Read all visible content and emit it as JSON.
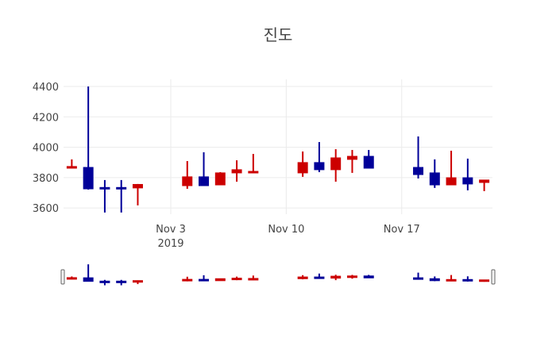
{
  "chart_data": {
    "type": "candlestick",
    "title": "진도",
    "xlabel": "",
    "ylabel": "",
    "ylim": [
      3559,
      4447
    ],
    "y_ticks": [
      3600,
      3800,
      4000,
      4200,
      4400
    ],
    "x_ticks": [
      {
        "date": "2019-11-03",
        "label": "Nov 3",
        "sublabel": "2019"
      },
      {
        "date": "2019-11-10",
        "label": "Nov 10",
        "sublabel": ""
      },
      {
        "date": "2019-11-17",
        "label": "Nov 17",
        "sublabel": ""
      }
    ],
    "xlim": [
      "2019-10-27T12:00",
      "2019-11-22T12:00"
    ],
    "grid": true,
    "range_slider": true,
    "increasing_color": "#cc0000",
    "decreasing_color": "#000099",
    "dates": [
      "2019-10-28",
      "2019-10-29",
      "2019-10-30",
      "2019-10-31",
      "2019-11-01",
      "2019-11-04",
      "2019-11-05",
      "2019-11-06",
      "2019-11-07",
      "2019-11-08",
      "2019-11-11",
      "2019-11-12",
      "2019-11-13",
      "2019-11-14",
      "2019-11-15",
      "2019-11-18",
      "2019-11-19",
      "2019-11-20",
      "2019-11-21",
      "2019-11-22"
    ],
    "open": [
      3862,
      3867,
      3735,
      3735,
      3732,
      3747,
      3805,
      3752,
      3831,
      3836,
      3831,
      3899,
      3852,
      3920,
      3940,
      3867,
      3831,
      3752,
      3799,
      3768
    ],
    "high": [
      3920,
      4400,
      3784,
      3784,
      3758,
      3909,
      3967,
      3836,
      3914,
      3956,
      3972,
      4034,
      3987,
      3982,
      3982,
      4071,
      3920,
      3977,
      3925,
      3784
    ],
    "low": [
      3862,
      3721,
      3570,
      3570,
      3617,
      3726,
      3747,
      3752,
      3773,
      3836,
      3805,
      3836,
      3773,
      3831,
      3862,
      3794,
      3732,
      3752,
      3716,
      3711
    ],
    "close": [
      3873,
      3726,
      3730,
      3730,
      3755,
      3805,
      3747,
      3831,
      3852,
      3841,
      3899,
      3852,
      3930,
      3940,
      3862,
      3820,
      3752,
      3799,
      3758,
      3784
    ]
  }
}
